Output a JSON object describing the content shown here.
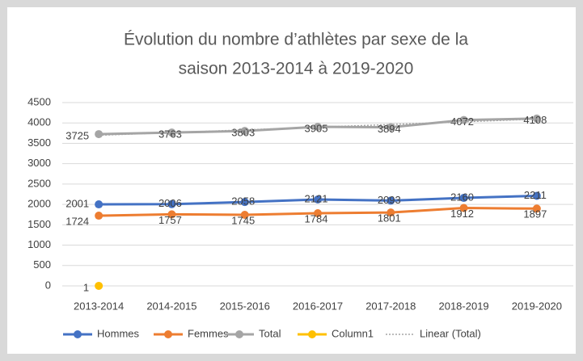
{
  "chart_data": {
    "type": "line",
    "title": [
      "Évolution du nombre d’athlètes par sexe de la",
      "saison 2013-2014 à 2019-2020"
    ],
    "categories": [
      "2013-2014",
      "2014-2015",
      "2015-2016",
      "2016-2017",
      "2017-2018",
      "2018-2019",
      "2019-2020"
    ],
    "series": [
      {
        "name": "Hommes",
        "color": "#4472c4",
        "values": [
          2001,
          2006,
          2058,
          2121,
          2093,
          2160,
          2211
        ],
        "labels": true
      },
      {
        "name": "Femmes",
        "color": "#ed7d31",
        "values": [
          1724,
          1757,
          1745,
          1784,
          1801,
          1912,
          1897
        ],
        "labels": true
      },
      {
        "name": "Total",
        "color": "#a5a5a5",
        "values": [
          3725,
          3763,
          3803,
          3905,
          3894,
          4072,
          4108
        ],
        "labels": true
      },
      {
        "name": "Column1",
        "color": "#ffc000",
        "values": [
          1,
          null,
          null,
          null,
          null,
          null,
          null
        ],
        "labels": true
      },
      {
        "name": "Linear (Total)",
        "color": "#a5a5a5",
        "values": [
          3697,
          3763,
          3829,
          3896,
          3962,
          4028,
          4095
        ],
        "dashed": true,
        "labels": false
      }
    ],
    "ylim": [
      0,
      4500
    ],
    "yticks": [
      0,
      500,
      1000,
      1500,
      2000,
      2500,
      3000,
      3500,
      4000,
      4500
    ],
    "grid": true,
    "legend": "bottom"
  }
}
